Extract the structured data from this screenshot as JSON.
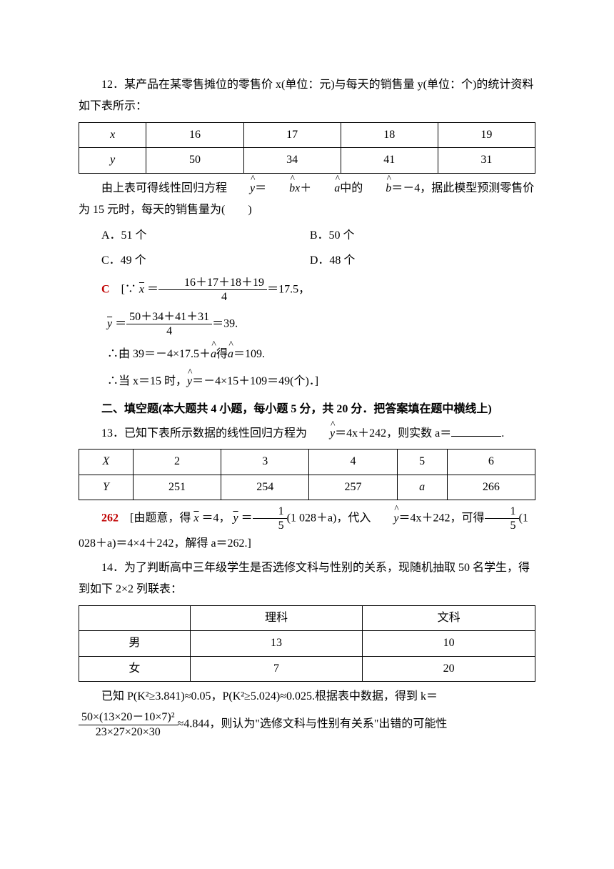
{
  "q12": {
    "intro": "12．某产品在某零售摊位的零售价 x(单位：元)与每天的销售量 y(单位：个)的统计资料如下表所示：",
    "table": {
      "row1": [
        "x",
        "16",
        "17",
        "18",
        "19"
      ],
      "row2": [
        "y",
        "50",
        "34",
        "41",
        "31"
      ]
    },
    "line2_a": "由上表可得线性回归方程",
    "line2_b": "中的",
    "line2_c": "＝－4，据此模型预测零售价为 15 元时，每天的销售量为(　　)",
    "opts": {
      "A": "A．51 个",
      "B": "B．50 个",
      "C": "C．49 个",
      "D": "D．48 个"
    },
    "answer_letter": "C",
    "sol": {
      "l1_pre": "[∵",
      "l1_frac_num": "16＋17＋18＋19",
      "l1_frac_den": "4",
      "l1_post": "＝17.5，",
      "l2_frac_num": "50＋34＋41＋31",
      "l2_frac_den": "4",
      "l2_post": "＝39.",
      "l3": "∴由 39＝－4×17.5＋",
      "l3b": "得",
      "l3c": "＝109.",
      "l4_a": "∴当 x＝15 时，",
      "l4_b": "＝－4×15＋109＝49(个)．]"
    }
  },
  "section2": "二、填空题(本大题共 4 小题，每小题 5 分，共 20 分．把答案填在题中横线上)",
  "q13": {
    "intro_a": "13．已知下表所示数据的线性回归方程为",
    "intro_b": "＝4x＋242，则实数 a＝",
    "intro_c": ".",
    "table": {
      "row1": [
        "X",
        "2",
        "3",
        "4",
        "5",
        "6"
      ],
      "row2": [
        "Y",
        "251",
        "254",
        "257",
        "a",
        "266"
      ]
    },
    "answer": "262",
    "sol_a": "[由题意，得",
    "sol_b": "＝4，",
    "sol_c": "＝",
    "sol_frac1_num": "1",
    "sol_frac1_den": "5",
    "sol_d": "(1 028＋a)，代入",
    "sol_e": "＝4x＋242，可得",
    "sol_f": "(1 028＋a)＝4×4＋242，解得 a＝262.]"
  },
  "q14": {
    "intro": "14．为了判断高中三年级学生是否选修文科与性别的关系，现随机抽取 50 名学生，得到如下 2×2 列联表：",
    "table": {
      "h1": "",
      "h2": "理科",
      "h3": "文科",
      "r1": [
        "男",
        "13",
        "10"
      ],
      "r2": [
        "女",
        "7",
        "20"
      ]
    },
    "line2": "已知 P(K²≥3.841)≈0.05，P(K²≥5.024)≈0.025.根据表中数据，得到 k＝",
    "frac_num": "50×(13×20－10×7)²",
    "frac_den": "23×27×20×30",
    "line3": "≈4.844，则认为\"选修文科与性别有关系\"出错的可能性"
  },
  "colors": {
    "text": "#000000",
    "answer": "#c00000",
    "background": "#ffffff",
    "border": "#000000"
  }
}
